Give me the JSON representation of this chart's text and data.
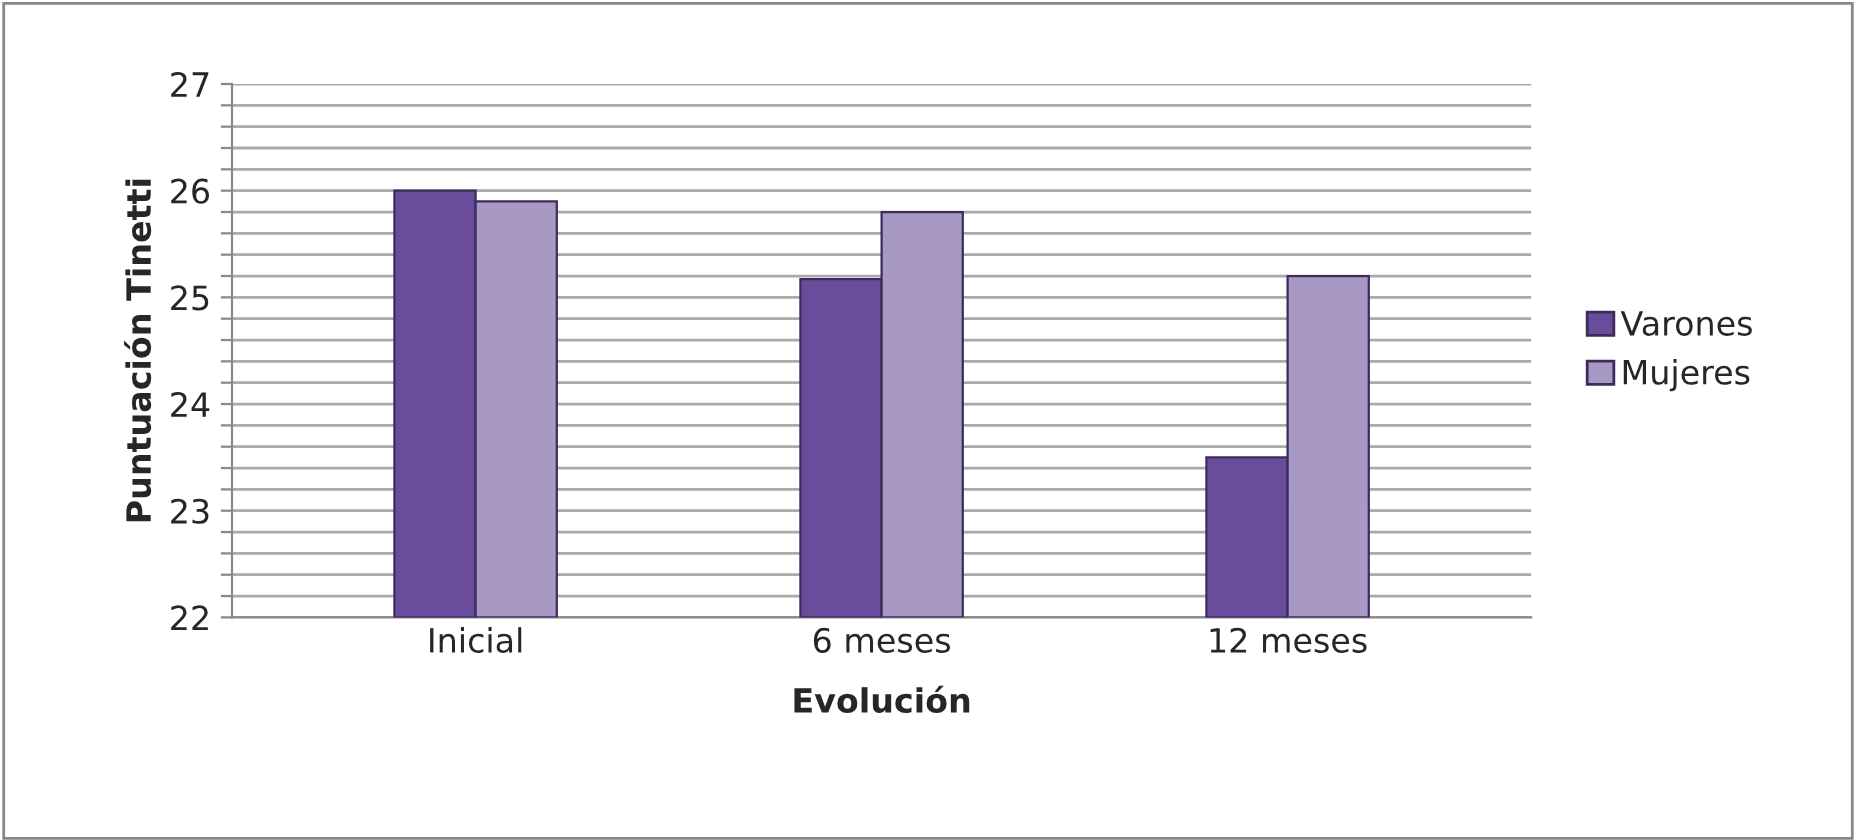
{
  "chart_data": {
    "type": "bar",
    "xlabel": "Evolución",
    "ylabel": "Puntuación Tinetti",
    "categories": [
      "Inicial",
      "6 meses",
      "12 meses"
    ],
    "series": [
      {
        "name": "Varones",
        "color": "#6a4c9c",
        "values": [
          26.0,
          25.17,
          23.5
        ]
      },
      {
        "name": "Mujeres",
        "color": "#a898c4",
        "values": [
          25.9,
          25.8,
          25.2
        ]
      }
    ],
    "ylim": [
      22,
      27
    ],
    "yticks": [
      22,
      {
        "value": 22.2,
        "label": null
      },
      {
        "value": 22.4,
        "label": null
      },
      {
        "value": 22.6,
        "label": null
      },
      {
        "value": 22.8,
        "label": null
      },
      23,
      {
        "value": 23.2,
        "label": null
      },
      {
        "value": 23.4,
        "label": null
      },
      {
        "value": 23.6,
        "label": null
      },
      {
        "value": 23.8,
        "label": null
      },
      24,
      {
        "value": 24.2,
        "label": null
      },
      {
        "value": 24.4,
        "label": null
      },
      {
        "value": 24.6,
        "label": null
      },
      {
        "value": 24.8,
        "label": null
      },
      25,
      {
        "value": 25.2,
        "label": null
      },
      {
        "value": 25.4,
        "label": null
      },
      {
        "value": 25.6,
        "label": null
      },
      {
        "value": 25.8,
        "label": null
      },
      26,
      {
        "value": 26.2,
        "label": null
      },
      {
        "value": 26.4,
        "label": null
      },
      {
        "value": 26.6,
        "label": null
      },
      {
        "value": 26.8,
        "label": null
      },
      27
    ],
    "grid": "y",
    "legend": "right"
  }
}
